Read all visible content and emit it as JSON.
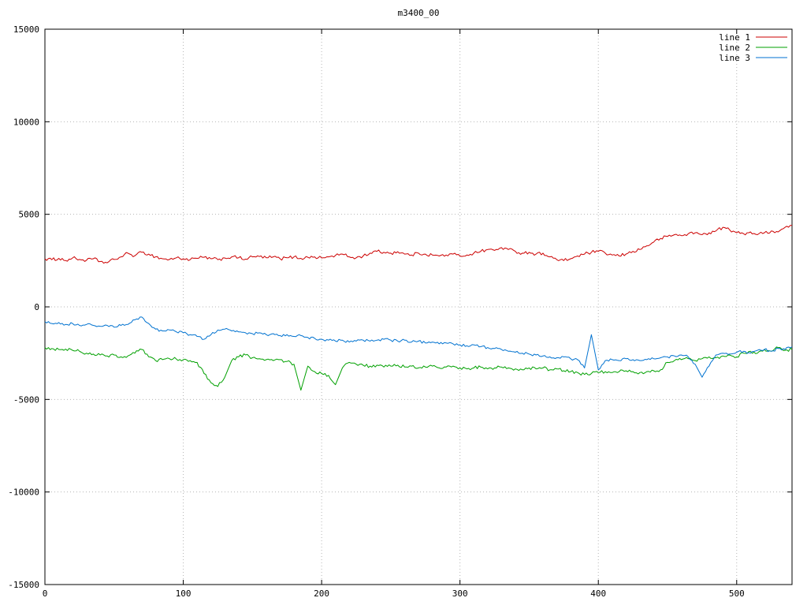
{
  "chart_data": {
    "type": "line",
    "title": "m3400_00",
    "xlabel": "",
    "ylabel": "",
    "xlim": [
      0,
      540
    ],
    "ylim": [
      -15000,
      15000
    ],
    "xticks": [
      0,
      100,
      200,
      300,
      400,
      500
    ],
    "yticks": [
      -15000,
      -10000,
      -5000,
      0,
      5000,
      10000,
      15000
    ],
    "grid": true,
    "legend_position": "top-right",
    "x_start": 0,
    "x_step": 5,
    "series": [
      {
        "name": "line 1",
        "color": "#cc0000",
        "values": [
          2600,
          2550,
          2620,
          2500,
          2640,
          2560,
          2520,
          2600,
          2450,
          2380,
          2560,
          2700,
          2900,
          2760,
          2950,
          2850,
          2700,
          2600,
          2560,
          2650,
          2600,
          2550,
          2620,
          2680,
          2600,
          2550,
          2640,
          2700,
          2650,
          2580,
          2700,
          2720,
          2650,
          2700,
          2600,
          2650,
          2700,
          2620,
          2680,
          2700,
          2640,
          2700,
          2780,
          2850,
          2700,
          2650,
          2750,
          2900,
          3000,
          2950,
          2900,
          2980,
          2850,
          2800,
          2900,
          2850,
          2800,
          2750,
          2800,
          2850,
          2750,
          2800,
          2900,
          3000,
          3100,
          3050,
          3200,
          3100,
          3000,
          2900,
          2950,
          2850,
          2900,
          2700,
          2550,
          2500,
          2600,
          2750,
          2850,
          2950,
          3000,
          2900,
          2800,
          2750,
          2850,
          3000,
          3100,
          3300,
          3500,
          3700,
          3800,
          3900,
          3850,
          3950,
          4000,
          3900,
          4000,
          4100,
          4300,
          4150,
          4000,
          3950,
          4050,
          3900,
          4000,
          4100,
          4050,
          4300,
          4400
        ]
      },
      {
        "name": "line 2",
        "color": "#00a000",
        "values": [
          -2200,
          -2250,
          -2300,
          -2280,
          -2350,
          -2400,
          -2500,
          -2550,
          -2600,
          -2650,
          -2600,
          -2700,
          -2650,
          -2500,
          -2300,
          -2700,
          -2900,
          -2850,
          -2800,
          -2820,
          -2850,
          -2900,
          -3000,
          -3600,
          -4100,
          -4300,
          -3800,
          -2900,
          -2700,
          -2600,
          -2750,
          -2800,
          -2850,
          -2900,
          -2850,
          -2950,
          -3100,
          -4500,
          -3200,
          -3500,
          -3600,
          -3700,
          -4200,
          -3300,
          -3000,
          -3100,
          -3150,
          -3200,
          -3150,
          -3250,
          -3200,
          -3150,
          -3250,
          -3200,
          -3300,
          -3250,
          -3200,
          -3300,
          -3250,
          -3200,
          -3300,
          -3350,
          -3300,
          -3250,
          -3350,
          -3300,
          -3250,
          -3300,
          -3350,
          -3400,
          -3300,
          -3350,
          -3300,
          -3400,
          -3350,
          -3450,
          -3500,
          -3550,
          -3650,
          -3600,
          -3550,
          -3500,
          -3550,
          -3500,
          -3450,
          -3500,
          -3550,
          -3500,
          -3450,
          -3400,
          -3000,
          -2900,
          -2850,
          -2800,
          -2900,
          -2800,
          -2700,
          -2750,
          -2650,
          -2600,
          -2700,
          -2500,
          -2400,
          -2500,
          -2300,
          -2400,
          -2200,
          -2350,
          -2300
        ]
      },
      {
        "name": "line 3",
        "color": "#0072d0",
        "values": [
          -800,
          -900,
          -850,
          -950,
          -900,
          -1000,
          -950,
          -1000,
          -1050,
          -1000,
          -1100,
          -1000,
          -950,
          -700,
          -550,
          -900,
          -1200,
          -1300,
          -1250,
          -1350,
          -1400,
          -1500,
          -1600,
          -1750,
          -1500,
          -1250,
          -1200,
          -1300,
          -1350,
          -1400,
          -1450,
          -1400,
          -1500,
          -1450,
          -1550,
          -1500,
          -1600,
          -1550,
          -1650,
          -1700,
          -1750,
          -1800,
          -1850,
          -1800,
          -1900,
          -1850,
          -1800,
          -1850,
          -1800,
          -1750,
          -1800,
          -1850,
          -1800,
          -1900,
          -1850,
          -1950,
          -1900,
          -2000,
          -1950,
          -2000,
          -2050,
          -2100,
          -2050,
          -2150,
          -2200,
          -2250,
          -2300,
          -2400,
          -2450,
          -2500,
          -2550,
          -2600,
          -2650,
          -2700,
          -2750,
          -2700,
          -2800,
          -2850,
          -3300,
          -1500,
          -3400,
          -2900,
          -2850,
          -2900,
          -2800,
          -2850,
          -2900,
          -2850,
          -2800,
          -2750,
          -2700,
          -2650,
          -2600,
          -2700,
          -3100,
          -3800,
          -3200,
          -2600,
          -2500,
          -2550,
          -2450,
          -2400,
          -2500,
          -2350,
          -2300,
          -2400,
          -2250,
          -2300,
          -2150
        ]
      }
    ]
  },
  "colors": {
    "grid": "#b4b4b4",
    "border": "#000000",
    "text": "#000000",
    "background": "#ffffff"
  }
}
